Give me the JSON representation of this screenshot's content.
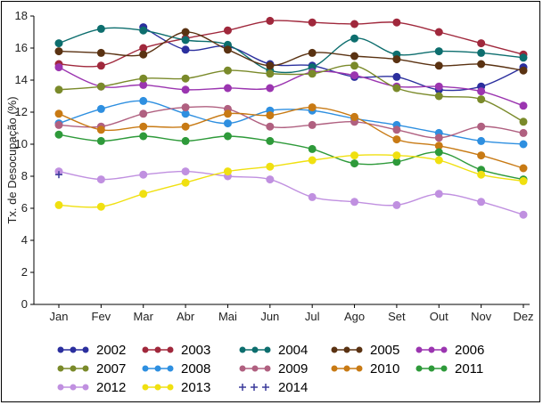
{
  "chart_data": {
    "type": "line",
    "ylabel": "Tx. de Desocupação (%)",
    "xlabel": "",
    "ylim": [
      0,
      18
    ],
    "yticks": [
      "0",
      "2",
      "4",
      "6",
      "8",
      "10",
      "12",
      "14",
      "16",
      "18"
    ],
    "categories": [
      "Jan",
      "Fev",
      "Mar",
      "Abr",
      "Mai",
      "Jun",
      "Jul",
      "Ago",
      "Set",
      "Out",
      "Nov",
      "Dez"
    ],
    "legend_placement": "bottom",
    "grid": false,
    "series": [
      {
        "name": "2002",
        "color": "#2b2f9e",
        "values": [
          null,
          null,
          17.3,
          15.9,
          16.1,
          15.0,
          14.9,
          14.2,
          14.2,
          13.4,
          13.6,
          14.8
        ]
      },
      {
        "name": "2003",
        "color": "#a0283c",
        "values": [
          15.0,
          14.9,
          16.0,
          16.6,
          17.1,
          17.7,
          17.6,
          17.5,
          17.6,
          17.0,
          16.3,
          15.6
        ]
      },
      {
        "name": "2004",
        "color": "#0d6e6e",
        "values": [
          16.3,
          17.2,
          17.1,
          16.5,
          16.2,
          14.6,
          14.8,
          16.6,
          15.6,
          15.8,
          15.7,
          15.4
        ]
      },
      {
        "name": "2005",
        "color": "#5a3212",
        "values": [
          15.8,
          15.7,
          15.6,
          17.0,
          15.9,
          14.9,
          15.7,
          15.5,
          15.3,
          14.9,
          15.0,
          14.6
        ]
      },
      {
        "name": "2006",
        "color": "#9b35b0",
        "values": [
          14.8,
          13.6,
          13.7,
          13.4,
          13.5,
          13.5,
          14.5,
          14.3,
          13.6,
          13.6,
          13.3,
          12.4
        ]
      },
      {
        "name": "2007",
        "color": "#7a8a2a",
        "values": [
          13.4,
          13.6,
          14.1,
          14.1,
          14.6,
          14.4,
          14.4,
          14.9,
          13.5,
          13.0,
          12.8,
          11.4
        ]
      },
      {
        "name": "2008",
        "color": "#2e8fe0",
        "values": [
          11.3,
          12.2,
          12.7,
          11.9,
          11.3,
          12.1,
          12.1,
          11.6,
          11.2,
          10.7,
          10.2,
          10.0
        ]
      },
      {
        "name": "2009",
        "color": "#b06080",
        "values": [
          11.2,
          11.1,
          11.9,
          12.3,
          12.2,
          11.1,
          11.2,
          11.4,
          10.9,
          10.4,
          11.1,
          10.7
        ]
      },
      {
        "name": "2010",
        "color": "#c87a14",
        "values": [
          11.9,
          10.9,
          11.1,
          11.1,
          11.9,
          11.8,
          12.3,
          11.7,
          10.3,
          9.9,
          9.3,
          8.5
        ]
      },
      {
        "name": "2011",
        "color": "#2e9a3a",
        "values": [
          10.6,
          10.2,
          10.5,
          10.2,
          10.5,
          10.2,
          9.7,
          8.8,
          8.9,
          9.5,
          8.4,
          7.8
        ]
      },
      {
        "name": "2012",
        "color": "#c090e0",
        "values": [
          8.3,
          7.8,
          8.1,
          8.3,
          8.0,
          7.8,
          6.7,
          6.4,
          6.2,
          6.9,
          6.4,
          5.6
        ]
      },
      {
        "name": "2013",
        "color": "#f0e010",
        "values": [
          6.2,
          6.1,
          6.9,
          7.6,
          8.3,
          8.6,
          9.0,
          9.3,
          9.3,
          9.0,
          8.1,
          7.7
        ]
      },
      {
        "name": "2014",
        "color": "#3a3a9a",
        "values": [
          8.1,
          null,
          null,
          null,
          null,
          null,
          null,
          null,
          null,
          null,
          null,
          null
        ]
      }
    ]
  }
}
